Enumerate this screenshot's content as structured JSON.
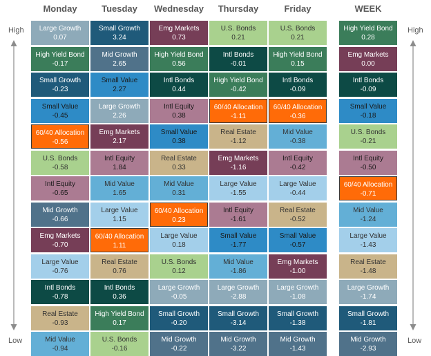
{
  "page": {
    "side_high": "High",
    "side_low": "Low"
  },
  "asset_classes": {
    "Large Growth": {
      "bg": "#8EAAB9",
      "fg": "#ffffff"
    },
    "Small Growth": {
      "bg": "#1F5A7A",
      "fg": "#ffffff"
    },
    "Emg Markets": {
      "bg": "#763E57",
      "fg": "#ffffff"
    },
    "U.S. Bonds": {
      "bg": "#A9D18E",
      "fg": "#333333"
    },
    "High Yield Bond": {
      "bg": "#3B7D5A",
      "fg": "#ffffff"
    },
    "Mid Growth": {
      "bg": "#50728A",
      "fg": "#ffffff"
    },
    "Intl Bonds": {
      "bg": "#0D4A45",
      "fg": "#ffffff"
    },
    "Small Value": {
      "bg": "#2E8BC6",
      "fg": "#1a1a1a"
    },
    "Intl Equity": {
      "bg": "#AB7B92",
      "fg": "#1a1a1a"
    },
    "60/40 Allocation": {
      "bg": "#FF6B08",
      "fg": "#ffffff"
    },
    "Real Estate": {
      "bg": "#C9B48A",
      "fg": "#333333"
    },
    "Mid Value": {
      "bg": "#63AFD6",
      "fg": "#333333"
    },
    "Large Value": {
      "bg": "#A3CFEA",
      "fg": "#333333"
    }
  },
  "chart_data": {
    "type": "table",
    "rank_axis": {
      "top": "High",
      "bottom": "Low"
    },
    "columns": [
      {
        "name": "Monday",
        "cells": [
          {
            "label": "Large Growth",
            "value": "0.07"
          },
          {
            "label": "High Yield Bond",
            "value": "-0.17"
          },
          {
            "label": "Small Growth",
            "value": "-0.23"
          },
          {
            "label": "Small Value",
            "value": "-0.45"
          },
          {
            "label": "60/40 Allocation",
            "value": "-0.56"
          },
          {
            "label": "U.S. Bonds",
            "value": "-0.58"
          },
          {
            "label": "Intl Equity",
            "value": "-0.65"
          },
          {
            "label": "Mid Growth",
            "value": "-0.66"
          },
          {
            "label": "Emg Markets",
            "value": "-0.70"
          },
          {
            "label": "Large Value",
            "value": "-0.76"
          },
          {
            "label": "Intl Bonds",
            "value": "-0.78"
          },
          {
            "label": "Real Estate",
            "value": "-0.93"
          },
          {
            "label": "Mid Value",
            "value": "-0.94"
          }
        ]
      },
      {
        "name": "Tuesday",
        "cells": [
          {
            "label": "Small Growth",
            "value": "3.24"
          },
          {
            "label": "Mid Growth",
            "value": "2.65"
          },
          {
            "label": "Small Value",
            "value": "2.27"
          },
          {
            "label": "Large Growth",
            "value": "2.26"
          },
          {
            "label": "Emg Markets",
            "value": "2.17"
          },
          {
            "label": "Intl Equity",
            "value": "1.84"
          },
          {
            "label": "Mid Value",
            "value": "1.65"
          },
          {
            "label": "Large Value",
            "value": "1.15"
          },
          {
            "label": "60/40 Allocation",
            "value": "1.11"
          },
          {
            "label": "Real Estate",
            "value": "0.76"
          },
          {
            "label": "Intl Bonds",
            "value": "0.36"
          },
          {
            "label": "High Yield Bond",
            "value": "0.17"
          },
          {
            "label": "U.S. Bonds",
            "value": "-0.16"
          }
        ]
      },
      {
        "name": "Wednesday",
        "cells": [
          {
            "label": "Emg Markets",
            "value": "0.73"
          },
          {
            "label": "High Yield Bond",
            "value": "0.56"
          },
          {
            "label": "Intl Bonds",
            "value": "0.44"
          },
          {
            "label": "Intl Equity",
            "value": "0.38"
          },
          {
            "label": "Small Value",
            "value": "0.38"
          },
          {
            "label": "Real Estate",
            "value": "0.33"
          },
          {
            "label": "Mid Value",
            "value": "0.31"
          },
          {
            "label": "60/40 Allocation",
            "value": "0.23"
          },
          {
            "label": "Large Value",
            "value": "0.18"
          },
          {
            "label": "U.S. Bonds",
            "value": "0.12"
          },
          {
            "label": "Large Growth",
            "value": "-0.05"
          },
          {
            "label": "Small Growth",
            "value": "-0.20"
          },
          {
            "label": "Mid Growth",
            "value": "-0.22"
          }
        ]
      },
      {
        "name": "Thursday",
        "cells": [
          {
            "label": "U.S. Bonds",
            "value": "0.21"
          },
          {
            "label": "Intl Bonds",
            "value": "-0.01"
          },
          {
            "label": "High Yield Bond",
            "value": "-0.42"
          },
          {
            "label": "60/40 Allocation",
            "value": "-1.11"
          },
          {
            "label": "Real Estate",
            "value": "-1.12"
          },
          {
            "label": "Emg Markets",
            "value": "-1.16"
          },
          {
            "label": "Large Value",
            "value": "-1.55"
          },
          {
            "label": "Intl Equity",
            "value": "-1.61"
          },
          {
            "label": "Small Value",
            "value": "-1.77"
          },
          {
            "label": "Mid Value",
            "value": "-1.86"
          },
          {
            "label": "Large Growth",
            "value": "-2.88"
          },
          {
            "label": "Small Growth",
            "value": "-3.14"
          },
          {
            "label": "Mid Growth",
            "value": "-3.22"
          }
        ]
      },
      {
        "name": "Friday",
        "cells": [
          {
            "label": "U.S. Bonds",
            "value": "0.21"
          },
          {
            "label": "High Yield Bond",
            "value": "0.15"
          },
          {
            "label": "Intl Bonds",
            "value": "-0.09"
          },
          {
            "label": "60/40 Allocation",
            "value": "-0.36"
          },
          {
            "label": "Mid Value",
            "value": "-0.38"
          },
          {
            "label": "Intl Equity",
            "value": "-0.42"
          },
          {
            "label": "Large Value",
            "value": "-0.44"
          },
          {
            "label": "Real Estate",
            "value": "-0.52"
          },
          {
            "label": "Small Value",
            "value": "-0.57"
          },
          {
            "label": "Emg Markets",
            "value": "-1.00"
          },
          {
            "label": "Large Growth",
            "value": "-1.08"
          },
          {
            "label": "Small Growth",
            "value": "-1.38"
          },
          {
            "label": "Mid Growth",
            "value": "-1.43"
          }
        ]
      },
      {
        "name": "WEEK",
        "cells": [
          {
            "label": "High Yield Bond",
            "value": "0.28"
          },
          {
            "label": "Emg Markets",
            "value": "0.00"
          },
          {
            "label": "Intl Bonds",
            "value": "-0.09"
          },
          {
            "label": "Small Value",
            "value": "-0.18"
          },
          {
            "label": "U.S. Bonds",
            "value": "-0.21"
          },
          {
            "label": "Intl Equity",
            "value": "-0.50"
          },
          {
            "label": "60/40 Allocation",
            "value": "-0.71"
          },
          {
            "label": "Mid Value",
            "value": "-1.24"
          },
          {
            "label": "Large Value",
            "value": "-1.43"
          },
          {
            "label": "Real Estate",
            "value": "-1.48"
          },
          {
            "label": "Large Growth",
            "value": "-1.74"
          },
          {
            "label": "Small Growth",
            "value": "-1.81"
          },
          {
            "label": "Mid Growth",
            "value": "-2.93"
          }
        ]
      }
    ]
  }
}
